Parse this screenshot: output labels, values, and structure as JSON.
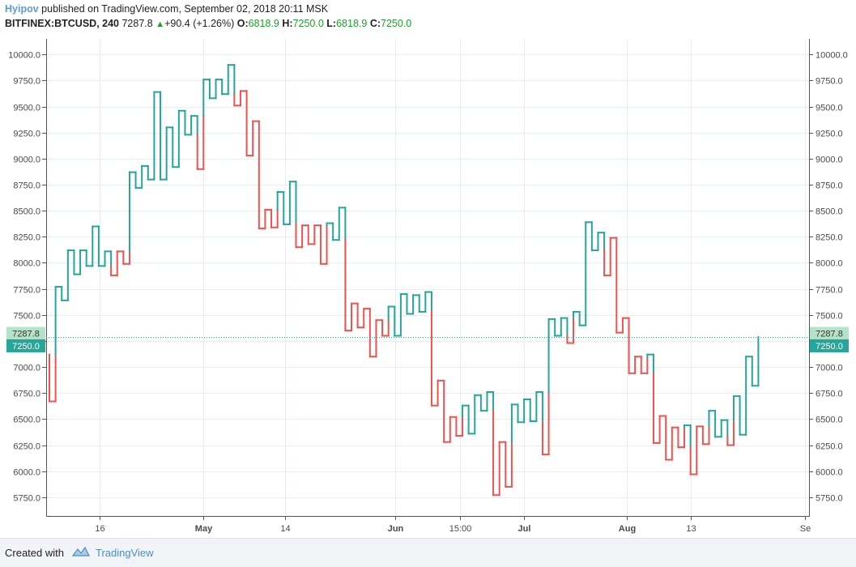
{
  "header": {
    "author": "Hyipov",
    "published": " published on TradingView.com, September 02, 2018 20:11 MSK",
    "symbol": "BITFINEX:BTCUSD, 240",
    "last": "7287.8",
    "change": "+90.4 (+1.26%)",
    "o_label": "O:",
    "o_val": "6818.9",
    "h_label": "H:",
    "h_val": "7250.0",
    "l_label": "L:",
    "l_val": "6818.9",
    "c_label": "C:",
    "c_val": "7250.0"
  },
  "footer": {
    "created": "Created with",
    "brand": "TradingView"
  },
  "colors": {
    "up": "#26a69a",
    "down": "#ef5350",
    "grid": "#e8edf2",
    "axis": "#555555"
  },
  "chart_data": {
    "type": "kagi",
    "ylim": [
      5570,
      10150
    ],
    "yticks": [
      5750,
      6000,
      6250,
      6500,
      6750,
      7000,
      7250,
      7500,
      7750,
      8000,
      8250,
      8500,
      8750,
      9000,
      9250,
      9500,
      9750,
      10000
    ],
    "ytick_labels": [
      "5750.0",
      "6000.0",
      "6250.0",
      "6500.0",
      "6750.0",
      "7000.0",
      "7250.0",
      "7500.0",
      "7750.0",
      "8000.0",
      "8250.0",
      "8500.0",
      "8750.0",
      "9000.0",
      "9250.0",
      "9500.0",
      "9750.0",
      "10000.0"
    ],
    "xticks": [
      "16",
      "May",
      "14",
      "Jun",
      "15:00",
      "Jul",
      "Aug",
      "13",
      "Se"
    ],
    "last_price": 7287.8,
    "last_price_label": "7287.8",
    "close_price": 7250.0,
    "close_price_label": "7250.0",
    "kagi_values": [
      7120,
      6670,
      7770,
      7640,
      8120,
      7890,
      8120,
      7970,
      8350,
      7970,
      8110,
      7880,
      8110,
      7990,
      8870,
      8720,
      8930,
      8800,
      9640,
      8800,
      9300,
      8920,
      9460,
      9230,
      9410,
      8900,
      9760,
      9580,
      9760,
      9620,
      9900,
      9510,
      9650,
      9030,
      9360,
      8330,
      8510,
      8340,
      8680,
      8370,
      8780,
      8150,
      8360,
      8180,
      8360,
      7990,
      8380,
      8220,
      8530,
      7350,
      7610,
      7380,
      7560,
      7100,
      7450,
      7300,
      7580,
      7300,
      7700,
      7510,
      7690,
      7530,
      7720,
      6630,
      6870,
      6280,
      6520,
      6340,
      6630,
      6360,
      6730,
      6580,
      6760,
      5770,
      6280,
      5850,
      6640,
      6470,
      6690,
      6480,
      6760,
      6160,
      7460,
      7300,
      7470,
      7230,
      7530,
      7400,
      8390,
      8120,
      8290,
      7880,
      8240,
      7330,
      7470,
      6940,
      7100,
      6940,
      7120,
      6270,
      6530,
      6110,
      6420,
      6230,
      6440,
      5970,
      6430,
      6260,
      6580,
      6330,
      6490,
      6250,
      6720,
      6350,
      7100,
      6820,
      7288
    ]
  }
}
